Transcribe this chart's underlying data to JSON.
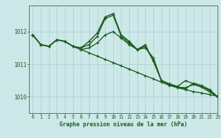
{
  "title": "Graphe pression niveau de la mer (hPa)",
  "bg_color": "#cce8e8",
  "grid_color": "#aacccc",
  "line_color": "#1a5c1a",
  "xlim": [
    -0.5,
    23
  ],
  "ylim": [
    1009.5,
    1012.8
  ],
  "yticks": [
    1010,
    1011,
    1012
  ],
  "series": [
    {
      "x": [
        0,
        1,
        2,
        3,
        4,
        5,
        6,
        7,
        8,
        9,
        10,
        11,
        12,
        13,
        14,
        15,
        16,
        17,
        18,
        19,
        20,
        21,
        22,
        23
      ],
      "y": [
        1011.9,
        1011.6,
        1011.55,
        1011.75,
        1011.7,
        1011.55,
        1011.45,
        1011.35,
        1011.25,
        1011.15,
        1011.05,
        1010.95,
        1010.85,
        1010.75,
        1010.65,
        1010.55,
        1010.45,
        1010.35,
        1010.28,
        1010.22,
        1010.16,
        1010.12,
        1010.07,
        1010.02
      ]
    },
    {
      "x": [
        0,
        1,
        2,
        3,
        4,
        5,
        6,
        7,
        8,
        9,
        10,
        11,
        12,
        13,
        14,
        15,
        16,
        17,
        18,
        19,
        20,
        21,
        22,
        23
      ],
      "y": [
        1011.9,
        1011.6,
        1011.55,
        1011.75,
        1011.7,
        1011.55,
        1011.45,
        1011.5,
        1011.65,
        1011.9,
        1012.0,
        1011.8,
        1011.6,
        1011.45,
        1011.5,
        1011.2,
        1010.5,
        1010.4,
        1010.32,
        1010.5,
        1010.4,
        1010.3,
        1010.15,
        1010.0
      ]
    },
    {
      "x": [
        0,
        1,
        2,
        3,
        4,
        5,
        6,
        7,
        8,
        9,
        10,
        11,
        12,
        13,
        14,
        15,
        16,
        17,
        18,
        19,
        20,
        21,
        22,
        23
      ],
      "y": [
        1011.9,
        1011.6,
        1011.55,
        1011.75,
        1011.7,
        1011.55,
        1011.5,
        1011.6,
        1011.85,
        1012.4,
        1012.5,
        1011.85,
        1011.65,
        1011.45,
        1011.55,
        1011.1,
        1010.5,
        1010.38,
        1010.3,
        1010.28,
        1010.38,
        1010.3,
        1010.2,
        1010.0
      ]
    },
    {
      "x": [
        0,
        1,
        2,
        3,
        4,
        5,
        6,
        7,
        8,
        9,
        10,
        11,
        12,
        13,
        14,
        15,
        16,
        17,
        18,
        19,
        20,
        21,
        22,
        23
      ],
      "y": [
        1011.9,
        1011.6,
        1011.55,
        1011.75,
        1011.7,
        1011.55,
        1011.5,
        1011.7,
        1011.95,
        1012.45,
        1012.55,
        1011.9,
        1011.7,
        1011.45,
        1011.6,
        1011.1,
        1010.5,
        1010.38,
        1010.3,
        1010.25,
        1010.42,
        1010.35,
        1010.22,
        1010.0
      ]
    }
  ]
}
